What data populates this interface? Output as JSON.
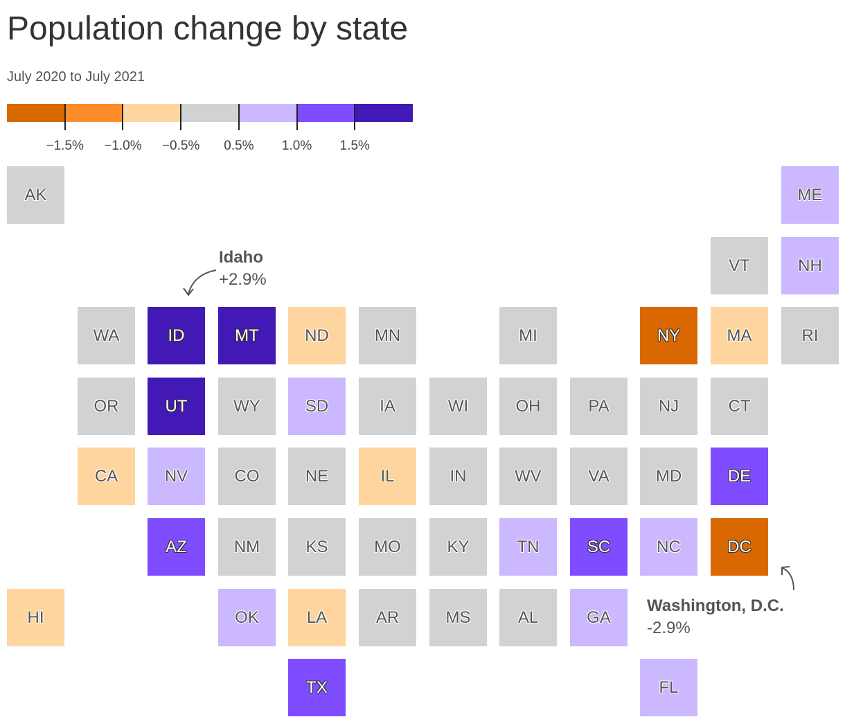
{
  "title": "Population change by state",
  "subtitle": "July 2020 to July 2021",
  "legend": {
    "colors": [
      "#d96800",
      "#ff8c2a",
      "#ffd59f",
      "#d1d3d2",
      "#cbb8ff",
      "#7f4dff",
      "#4219b4"
    ],
    "ticks": [
      "−1.5%",
      "−1.0%",
      "−0.5%",
      "0.5%",
      "1.0%",
      "1.5%"
    ]
  },
  "annotations": {
    "idaho": {
      "name": "Idaho",
      "value": "+2.9%"
    },
    "dc": {
      "name": "Washington, D.C.",
      "value": "-2.9%"
    }
  },
  "tiles": [
    {
      "abbr": "AK",
      "col": 0,
      "row": 0,
      "bin": 3
    },
    {
      "abbr": "ME",
      "col": 11,
      "row": 0,
      "bin": 4
    },
    {
      "abbr": "VT",
      "col": 10,
      "row": 1,
      "bin": 3
    },
    {
      "abbr": "NH",
      "col": 11,
      "row": 1,
      "bin": 4
    },
    {
      "abbr": "WA",
      "col": 1,
      "row": 2,
      "bin": 3
    },
    {
      "abbr": "ID",
      "col": 2,
      "row": 2,
      "bin": 6
    },
    {
      "abbr": "MT",
      "col": 3,
      "row": 2,
      "bin": 6
    },
    {
      "abbr": "ND",
      "col": 4,
      "row": 2,
      "bin": 2
    },
    {
      "abbr": "MN",
      "col": 5,
      "row": 2,
      "bin": 3
    },
    {
      "abbr": "MI",
      "col": 7,
      "row": 2,
      "bin": 3
    },
    {
      "abbr": "NY",
      "col": 9,
      "row": 2,
      "bin": 0
    },
    {
      "abbr": "MA",
      "col": 10,
      "row": 2,
      "bin": 2
    },
    {
      "abbr": "RI",
      "col": 11,
      "row": 2,
      "bin": 3
    },
    {
      "abbr": "OR",
      "col": 1,
      "row": 3,
      "bin": 3
    },
    {
      "abbr": "UT",
      "col": 2,
      "row": 3,
      "bin": 6
    },
    {
      "abbr": "WY",
      "col": 3,
      "row": 3,
      "bin": 3
    },
    {
      "abbr": "SD",
      "col": 4,
      "row": 3,
      "bin": 4
    },
    {
      "abbr": "IA",
      "col": 5,
      "row": 3,
      "bin": 3
    },
    {
      "abbr": "WI",
      "col": 6,
      "row": 3,
      "bin": 3
    },
    {
      "abbr": "OH",
      "col": 7,
      "row": 3,
      "bin": 3
    },
    {
      "abbr": "PA",
      "col": 8,
      "row": 3,
      "bin": 3
    },
    {
      "abbr": "NJ",
      "col": 9,
      "row": 3,
      "bin": 3
    },
    {
      "abbr": "CT",
      "col": 10,
      "row": 3,
      "bin": 3
    },
    {
      "abbr": "CA",
      "col": 1,
      "row": 4,
      "bin": 2
    },
    {
      "abbr": "NV",
      "col": 2,
      "row": 4,
      "bin": 4
    },
    {
      "abbr": "CO",
      "col": 3,
      "row": 4,
      "bin": 3
    },
    {
      "abbr": "NE",
      "col": 4,
      "row": 4,
      "bin": 3
    },
    {
      "abbr": "IL",
      "col": 5,
      "row": 4,
      "bin": 2
    },
    {
      "abbr": "IN",
      "col": 6,
      "row": 4,
      "bin": 3
    },
    {
      "abbr": "WV",
      "col": 7,
      "row": 4,
      "bin": 3
    },
    {
      "abbr": "VA",
      "col": 8,
      "row": 4,
      "bin": 3
    },
    {
      "abbr": "MD",
      "col": 9,
      "row": 4,
      "bin": 3
    },
    {
      "abbr": "DE",
      "col": 10,
      "row": 4,
      "bin": 5
    },
    {
      "abbr": "AZ",
      "col": 2,
      "row": 5,
      "bin": 5
    },
    {
      "abbr": "NM",
      "col": 3,
      "row": 5,
      "bin": 3
    },
    {
      "abbr": "KS",
      "col": 4,
      "row": 5,
      "bin": 3
    },
    {
      "abbr": "MO",
      "col": 5,
      "row": 5,
      "bin": 3
    },
    {
      "abbr": "KY",
      "col": 6,
      "row": 5,
      "bin": 3
    },
    {
      "abbr": "TN",
      "col": 7,
      "row": 5,
      "bin": 4
    },
    {
      "abbr": "SC",
      "col": 8,
      "row": 5,
      "bin": 5
    },
    {
      "abbr": "NC",
      "col": 9,
      "row": 5,
      "bin": 4
    },
    {
      "abbr": "DC",
      "col": 10,
      "row": 5,
      "bin": 0
    },
    {
      "abbr": "HI",
      "col": 0,
      "row": 6,
      "bin": 2
    },
    {
      "abbr": "OK",
      "col": 3,
      "row": 6,
      "bin": 4
    },
    {
      "abbr": "LA",
      "col": 4,
      "row": 6,
      "bin": 2
    },
    {
      "abbr": "AR",
      "col": 5,
      "row": 6,
      "bin": 3
    },
    {
      "abbr": "MS",
      "col": 6,
      "row": 6,
      "bin": 3
    },
    {
      "abbr": "AL",
      "col": 7,
      "row": 6,
      "bin": 3
    },
    {
      "abbr": "GA",
      "col": 8,
      "row": 6,
      "bin": 4
    },
    {
      "abbr": "TX",
      "col": 4,
      "row": 7,
      "bin": 5
    },
    {
      "abbr": "FL",
      "col": 9,
      "row": 7,
      "bin": 4
    }
  ]
}
